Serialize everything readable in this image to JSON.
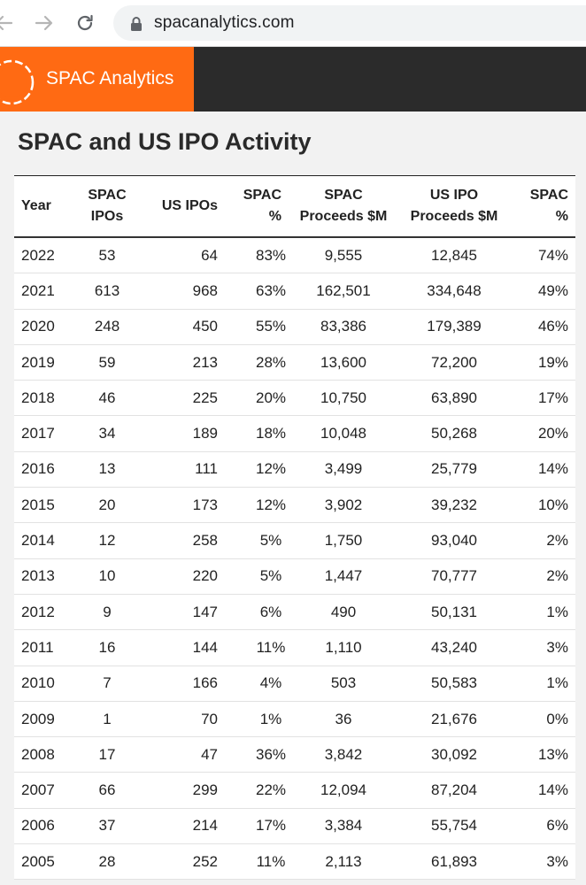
{
  "browser": {
    "url": "spacanalytics.com"
  },
  "site": {
    "brand_name": "SPAC Analytics",
    "accent_color": "#ff6a13",
    "header_color": "#2b2b2b"
  },
  "page": {
    "title": "SPAC and US IPO Activity"
  },
  "table": {
    "headers": [
      [
        "Year"
      ],
      [
        "SPAC",
        "IPOs"
      ],
      [
        "US IPOs"
      ],
      [
        "SPAC",
        "%"
      ],
      [
        "SPAC",
        "Proceeds $M"
      ],
      [
        "US IPO",
        "Proceeds $M"
      ],
      [
        "SPAC",
        "%"
      ]
    ],
    "rows": [
      [
        "2022",
        "53",
        "64",
        "83%",
        "9,555",
        "12,845",
        "74%"
      ],
      [
        "2021",
        "613",
        "968",
        "63%",
        "162,501",
        "334,648",
        "49%"
      ],
      [
        "2020",
        "248",
        "450",
        "55%",
        "83,386",
        "179,389",
        "46%"
      ],
      [
        "2019",
        "59",
        "213",
        "28%",
        "13,600",
        "72,200",
        "19%"
      ],
      [
        "2018",
        "46",
        "225",
        "20%",
        "10,750",
        "63,890",
        "17%"
      ],
      [
        "2017",
        "34",
        "189",
        "18%",
        "10,048",
        "50,268",
        "20%"
      ],
      [
        "2016",
        "13",
        "111",
        "12%",
        "3,499",
        "25,779",
        "14%"
      ],
      [
        "2015",
        "20",
        "173",
        "12%",
        "3,902",
        "39,232",
        "10%"
      ],
      [
        "2014",
        "12",
        "258",
        "5%",
        "1,750",
        "93,040",
        "2%"
      ],
      [
        "2013",
        "10",
        "220",
        "5%",
        "1,447",
        "70,777",
        "2%"
      ],
      [
        "2012",
        "9",
        "147",
        "6%",
        "490",
        "50,131",
        "1%"
      ],
      [
        "2011",
        "16",
        "144",
        "11%",
        "1,110",
        "43,240",
        "3%"
      ],
      [
        "2010",
        "7",
        "166",
        "4%",
        "503",
        "50,583",
        "1%"
      ],
      [
        "2009",
        "1",
        "70",
        "1%",
        "36",
        "21,676",
        "0%"
      ],
      [
        "2008",
        "17",
        "47",
        "36%",
        "3,842",
        "30,092",
        "13%"
      ],
      [
        "2007",
        "66",
        "299",
        "22%",
        "12,094",
        "87,204",
        "14%"
      ],
      [
        "2006",
        "37",
        "214",
        "17%",
        "3,384",
        "55,754",
        "6%"
      ],
      [
        "2005",
        "28",
        "252",
        "11%",
        "2,113",
        "61,893",
        "3%"
      ]
    ]
  }
}
